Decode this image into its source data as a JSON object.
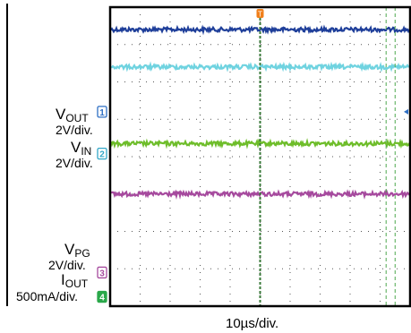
{
  "chart_data": {
    "type": "line",
    "title": "",
    "xlabel": "10µs/div.",
    "ylabel": "",
    "x_divisions": 10,
    "y_divisions": 8,
    "grid": true,
    "y_range_div": [
      0,
      8
    ],
    "series": [
      {
        "name": "V_OUT",
        "channel": "1",
        "scale": "2V/div.",
        "color": "#1f3f9a",
        "level_div": 7.4,
        "marker_div": 5.2,
        "marker_color": "#2e6fc4"
      },
      {
        "name": "V_IN",
        "channel": "2",
        "scale": "2V/div.",
        "color": "#6ebd2a",
        "level_div": 4.35,
        "marker_div": 4.08,
        "marker_color": "#33a8c8"
      },
      {
        "name": "V_PG",
        "channel": "3",
        "scale": "2V/div.",
        "color": "#a64a9e",
        "level_div": 3.0,
        "marker_div": 0.9,
        "marker_color": "#a64a9e"
      },
      {
        "name": "I_OUT",
        "channel": "4",
        "scale": "500mA/div.",
        "color": "#6fd3e0",
        "level_div": 6.4,
        "marker_div": 0.25,
        "marker_color": "#2aa84a"
      }
    ]
  },
  "labels": {
    "vout_main": "V",
    "vout_sub": "OUT",
    "vout_scale": "2V/div.",
    "vin_main": "V",
    "vin_sub": "IN",
    "vin_scale": "2V/div.",
    "vpg_main": "V",
    "vpg_sub": "PG",
    "vpg_scale": "2V/div.",
    "iout_main": "I",
    "iout_sub": "OUT",
    "iout_scale": "500mA/div."
  },
  "trigger_marker": "T",
  "colors": {
    "trigger": "#f07f1a",
    "time_cursor": "#3a7a3a",
    "cursor_dashed": "#4fa84f",
    "grid_dots": "#555555",
    "frame": "#000000"
  }
}
